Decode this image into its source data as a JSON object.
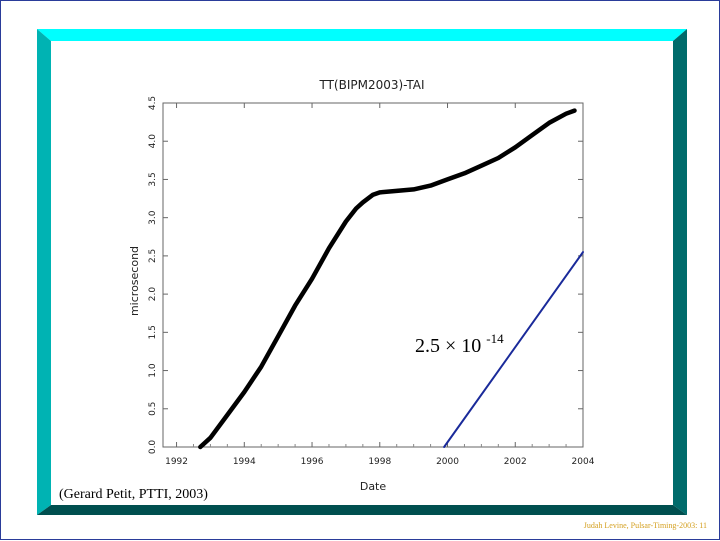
{
  "slide": {
    "caption": "(Gerard Petit, PTTI, 2003)",
    "footer": "Judah Levine, Pulsar-Timing-2003: 11",
    "colors": {
      "frame_top": "#00ffff",
      "frame_left": "#00b3b3",
      "frame_right": "#006b6b",
      "frame_bottom": "#004f4f",
      "border": "#2a3c9a",
      "slope_line": "#1a2a9a"
    }
  },
  "chart_data": {
    "type": "line",
    "title": "TT(BIPM2003)-TAI",
    "xlabel": "Date",
    "ylabel": "microsecond",
    "xlim": [
      1991.6,
      2004
    ],
    "ylim": [
      0,
      4.5
    ],
    "xticks": [
      "1992",
      "1994",
      "1996",
      "1998",
      "2000",
      "2002",
      "2004"
    ],
    "yticks": [
      "0.0",
      "0.5",
      "1.0",
      "1.5",
      "2.0",
      "2.5",
      "3.0",
      "3.5",
      "4.0",
      "4.5"
    ],
    "grid": false,
    "series": [
      {
        "x": [
          1992.7,
          1993.0,
          1993.5,
          1994.0,
          1994.5,
          1995.0,
          1995.5,
          1996.0,
          1996.5,
          1997.0,
          1997.3,
          1997.5,
          1997.8,
          1998.0,
          1998.5,
          1999.0,
          1999.5,
          2000.0,
          2000.5,
          2001.0,
          2001.5,
          2002.0,
          2002.5,
          2003.0,
          2003.5,
          2003.75
        ],
        "y": [
          0.0,
          0.12,
          0.42,
          0.72,
          1.05,
          1.45,
          1.85,
          2.2,
          2.6,
          2.95,
          3.12,
          3.2,
          3.3,
          3.33,
          3.35,
          3.37,
          3.42,
          3.5,
          3.58,
          3.68,
          3.78,
          3.92,
          4.08,
          4.24,
          4.36,
          4.4
        ]
      },
      {
        "x": [
          1999.9,
          2004.0
        ],
        "y": [
          0.0,
          2.55
        ]
      }
    ],
    "annotations": [
      {
        "base": "2.5",
        "times": "×",
        "power": "10",
        "exponent": "-14"
      }
    ]
  }
}
